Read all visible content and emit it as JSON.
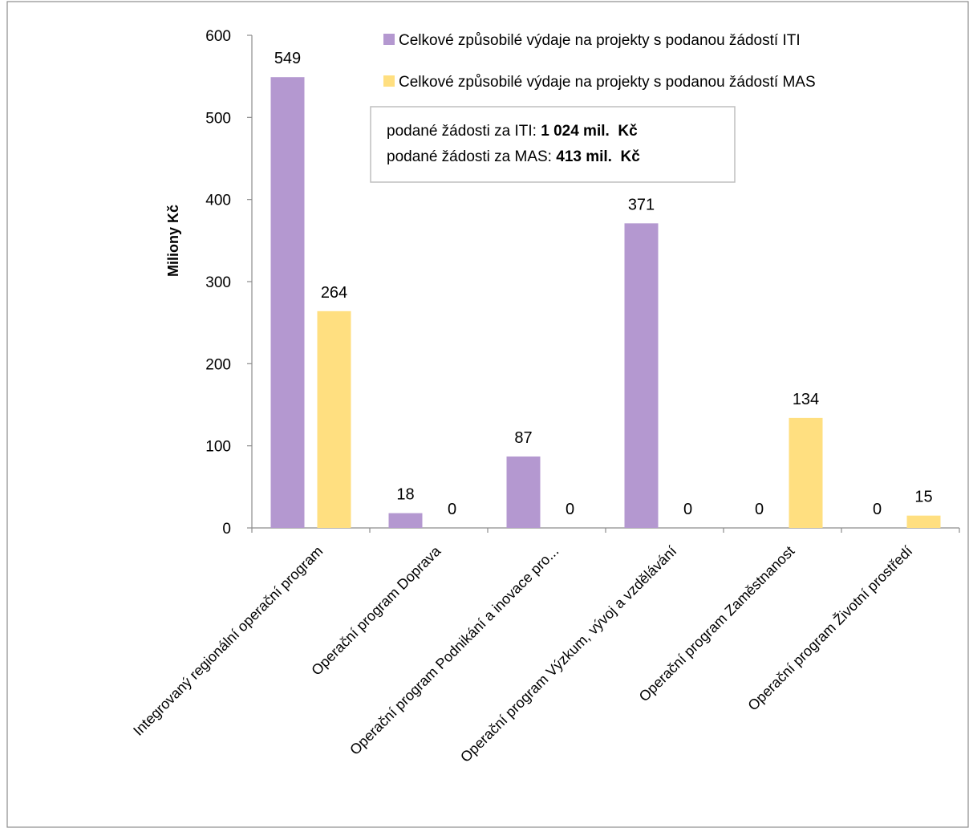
{
  "chart_data": {
    "type": "bar",
    "title": "",
    "xlabel": "",
    "ylabel": "Miliony Kč",
    "ylim": [
      0,
      600
    ],
    "yticks": [
      0,
      100,
      200,
      300,
      400,
      500,
      600
    ],
    "grid": false,
    "legend_position": "top-right",
    "categories": [
      "Integrovaný regionální operační program",
      "Operační program Doprava",
      "Operační program Podnikání a inovace pro...",
      "Operační program Výzkum, vývoj a vzdělávání",
      "Operační program Zaměstnanost",
      "Operační program Životní prostředí"
    ],
    "series": [
      {
        "name": "Celkové způsobilé výdaje na projekty s podanou žádostí ITI",
        "color": "#b498d0",
        "values": [
          549,
          18,
          87,
          371,
          0,
          0
        ]
      },
      {
        "name": "Celkové způsobilé výdaje na projekty s podanou žádostí MAS",
        "color": "#ffdf80",
        "values": [
          264,
          0,
          0,
          0,
          134,
          15
        ]
      }
    ],
    "annotation": {
      "line1_prefix": "podané žádosti za ITI: ",
      "line1_value": "1 024 mil.  Kč",
      "line2_prefix": "podané žádosti za MAS: ",
      "line2_value": "413 mil.  Kč"
    }
  }
}
